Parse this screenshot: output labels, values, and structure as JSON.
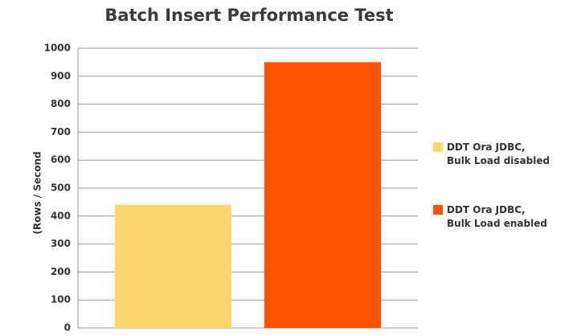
{
  "chart_data": {
    "type": "bar",
    "title": "Batch Insert Performance Test",
    "y_label": "(Rows / Second",
    "categories": [
      null
    ],
    "series": [
      {
        "name": "DDT Ora JDBC,\nBulk Load disabled",
        "color": "#fdd76e",
        "values": [
          440
        ]
      },
      {
        "name": "DDT Ora JDBC,\nBulk Load enabled",
        "color": "#ff5100",
        "values": [
          950
        ]
      }
    ],
    "ylim": [
      0,
      1000
    ],
    "yticks": [
      0,
      100,
      200,
      300,
      400,
      500,
      600,
      700,
      800,
      900,
      1000
    ],
    "grid": true,
    "legend": "right"
  }
}
